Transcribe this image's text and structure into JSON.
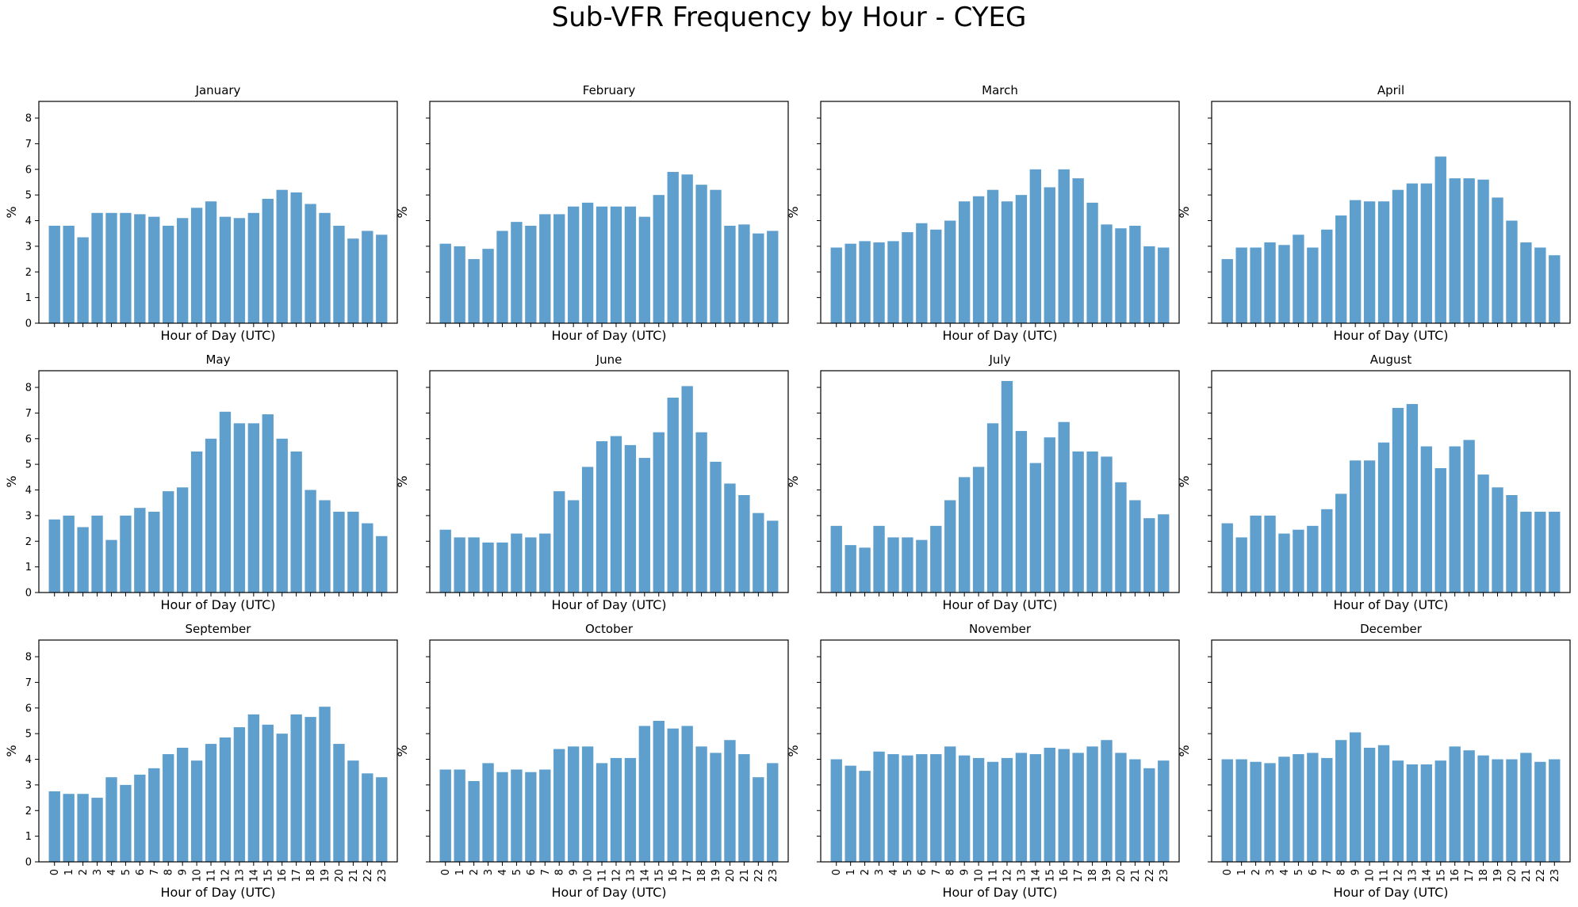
{
  "title": "Sub-VFR Frequency by Hour - CYEG",
  "chart_data": {
    "type": "bar",
    "title": "Sub-VFR Frequency by Hour - CYEG",
    "bar_color": "#5f9fcd",
    "grid": false,
    "sharey": true,
    "ylim": [
      0,
      8.65
    ],
    "yticks": [
      0,
      1,
      2,
      3,
      4,
      5,
      6,
      7,
      8
    ],
    "xlabel": "Hour of Day (UTC)",
    "ylabel": "%",
    "categories": [
      "0",
      "1",
      "2",
      "3",
      "4",
      "5",
      "6",
      "7",
      "8",
      "9",
      "10",
      "11",
      "12",
      "13",
      "14",
      "15",
      "16",
      "17",
      "18",
      "19",
      "20",
      "21",
      "22",
      "23"
    ],
    "panels": [
      {
        "title": "January",
        "values": [
          3.8,
          3.8,
          3.35,
          4.3,
          4.3,
          4.3,
          4.25,
          4.15,
          3.8,
          4.1,
          4.5,
          4.75,
          4.15,
          4.1,
          4.3,
          4.85,
          5.2,
          5.1,
          4.65,
          4.3,
          3.8,
          3.3,
          3.6,
          3.45
        ]
      },
      {
        "title": "February",
        "values": [
          3.1,
          3.0,
          2.5,
          2.9,
          3.6,
          3.95,
          3.8,
          4.25,
          4.25,
          4.55,
          4.7,
          4.55,
          4.55,
          4.55,
          4.15,
          5.0,
          5.9,
          5.8,
          5.4,
          5.2,
          3.8,
          3.85,
          3.5,
          3.6
        ]
      },
      {
        "title": "March",
        "values": [
          2.95,
          3.1,
          3.2,
          3.15,
          3.2,
          3.55,
          3.9,
          3.65,
          4.0,
          4.75,
          4.95,
          5.2,
          4.75,
          5.0,
          6.0,
          5.3,
          6.0,
          5.65,
          4.7,
          3.85,
          3.7,
          3.8,
          3.0,
          2.95
        ]
      },
      {
        "title": "April",
        "values": [
          2.5,
          2.95,
          2.95,
          3.15,
          3.05,
          3.45,
          2.95,
          3.65,
          4.2,
          4.8,
          4.75,
          4.75,
          5.2,
          5.45,
          5.45,
          6.5,
          5.65,
          5.65,
          5.6,
          4.9,
          4.0,
          3.15,
          2.95,
          2.65
        ]
      },
      {
        "title": "May",
        "values": [
          2.85,
          3.0,
          2.55,
          3.0,
          2.05,
          3.0,
          3.3,
          3.15,
          3.95,
          4.1,
          5.5,
          6.0,
          7.05,
          6.6,
          6.6,
          6.95,
          6.0,
          5.5,
          4.0,
          3.6,
          3.15,
          3.15,
          2.7,
          2.2
        ]
      },
      {
        "title": "June",
        "values": [
          2.45,
          2.15,
          2.15,
          1.95,
          1.95,
          2.3,
          2.15,
          2.3,
          3.95,
          3.6,
          4.9,
          5.9,
          6.1,
          5.75,
          5.25,
          6.25,
          7.6,
          8.05,
          6.25,
          5.1,
          4.25,
          3.8,
          3.1,
          2.8
        ]
      },
      {
        "title": "July",
        "values": [
          2.6,
          1.85,
          1.75,
          2.6,
          2.15,
          2.15,
          2.05,
          2.6,
          3.6,
          4.5,
          4.9,
          6.6,
          8.25,
          6.3,
          5.05,
          6.05,
          6.65,
          5.5,
          5.5,
          5.3,
          4.3,
          3.6,
          2.9,
          3.05
        ]
      },
      {
        "title": "August",
        "values": [
          2.7,
          2.15,
          3.0,
          3.0,
          2.3,
          2.45,
          2.6,
          3.25,
          3.85,
          5.15,
          5.15,
          5.85,
          7.2,
          7.35,
          5.7,
          4.85,
          5.7,
          5.95,
          4.6,
          4.1,
          3.8,
          3.15,
          3.15,
          3.15
        ]
      },
      {
        "title": "September",
        "values": [
          2.75,
          2.65,
          2.65,
          2.5,
          3.3,
          3.0,
          3.4,
          3.65,
          4.2,
          4.45,
          3.95,
          4.6,
          4.85,
          5.25,
          5.75,
          5.35,
          5.0,
          5.75,
          5.65,
          6.05,
          4.6,
          3.95,
          3.45,
          3.3
        ]
      },
      {
        "title": "October",
        "values": [
          3.6,
          3.6,
          3.15,
          3.85,
          3.5,
          3.6,
          3.5,
          3.6,
          4.4,
          4.5,
          4.5,
          3.85,
          4.05,
          4.05,
          5.3,
          5.5,
          5.2,
          5.3,
          4.5,
          4.25,
          4.75,
          4.2,
          3.3,
          3.85
        ]
      },
      {
        "title": "November",
        "values": [
          4.0,
          3.75,
          3.55,
          4.3,
          4.2,
          4.15,
          4.2,
          4.2,
          4.5,
          4.15,
          4.05,
          3.9,
          4.05,
          4.25,
          4.2,
          4.45,
          4.4,
          4.25,
          4.5,
          4.75,
          4.25,
          4.0,
          3.65,
          3.95
        ]
      },
      {
        "title": "December",
        "values": [
          4.0,
          4.0,
          3.9,
          3.85,
          4.1,
          4.2,
          4.25,
          4.05,
          4.75,
          5.05,
          4.45,
          4.55,
          3.95,
          3.8,
          3.8,
          3.95,
          4.5,
          4.35,
          4.15,
          4.0,
          4.0,
          4.25,
          3.9,
          4.0
        ]
      }
    ]
  }
}
